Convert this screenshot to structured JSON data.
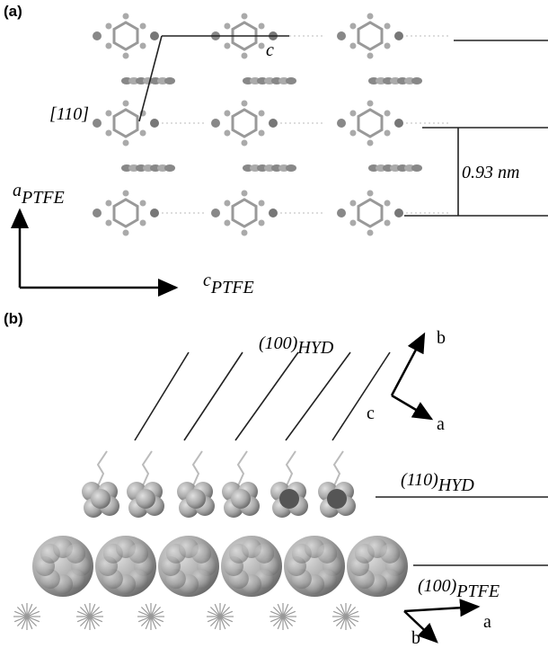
{
  "panel_a": {
    "label": "(a)",
    "cell_axis": "c",
    "direction": "[110]",
    "spacing": "0.93 nm",
    "vertical_axis": {
      "symbol": "a",
      "subscript": "PTFE"
    },
    "horizontal_axis": {
      "symbol": "c",
      "subscript": "PTFE"
    }
  },
  "panel_b": {
    "label": "(b)",
    "planes": [
      {
        "index": "(100)",
        "phase": "HYD"
      },
      {
        "index": "(110)",
        "phase": "HYD"
      },
      {
        "index": "(100)",
        "phase": "PTFE"
      }
    ],
    "top_axes": {
      "b": "b",
      "c": "c",
      "a": "a"
    },
    "bottom_axes": {
      "a": "a",
      "b": "b"
    }
  }
}
